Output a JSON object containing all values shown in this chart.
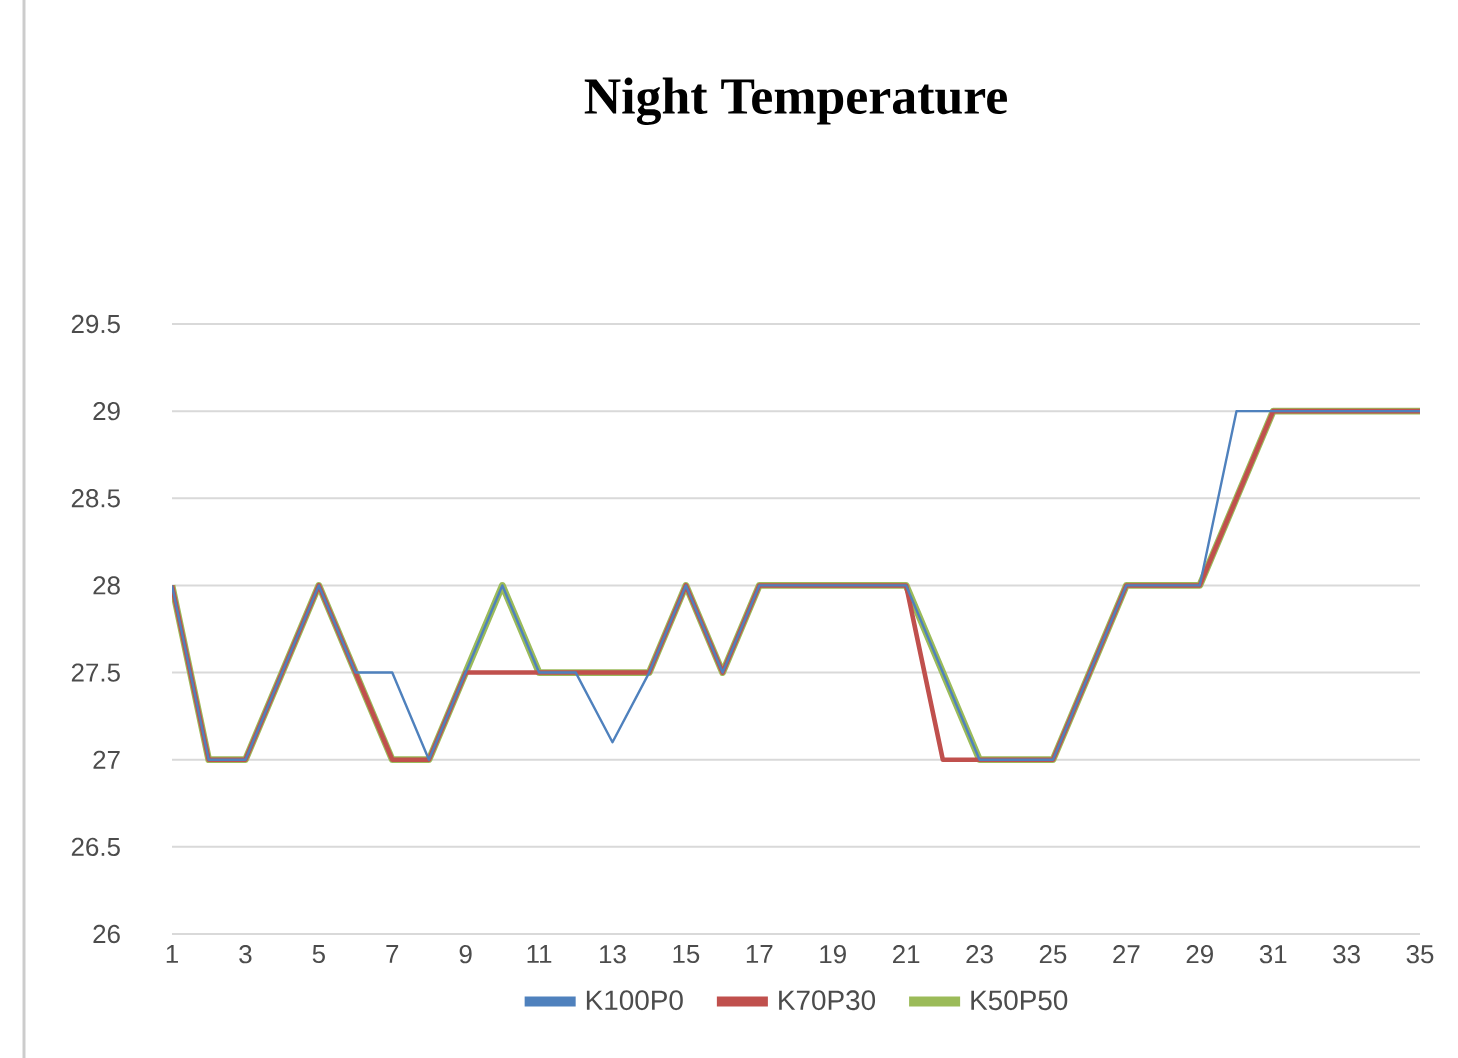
{
  "chart_data": {
    "type": "line",
    "title": "Night Temperature",
    "categories": [
      "1",
      null,
      "3",
      null,
      "5",
      null,
      "7",
      null,
      "9",
      null,
      "11",
      null,
      "13",
      null,
      "15",
      null,
      "17",
      null,
      "19",
      null,
      "21",
      null,
      "23",
      null,
      "25",
      null,
      "27",
      null,
      "29",
      null,
      "31",
      null,
      "33",
      null,
      "35"
    ],
    "series": [
      {
        "name": "K100P0",
        "color": "#4f81bd",
        "values": [
          28,
          27,
          27,
          27.5,
          28,
          27.5,
          27.5,
          27,
          27.5,
          28,
          27.5,
          27.5,
          27.1,
          27.5,
          28,
          27.5,
          28,
          28,
          28,
          28,
          28,
          27.5,
          27,
          27,
          27,
          27.5,
          28,
          28,
          28,
          29,
          29,
          29,
          29,
          29,
          29
        ]
      },
      {
        "name": "K70P30",
        "color": "#c0504d",
        "values": [
          28,
          27,
          27,
          27.5,
          28,
          27.5,
          27,
          27,
          27.5,
          27.5,
          27.5,
          27.5,
          27.5,
          27.5,
          28,
          27.5,
          28,
          28,
          28,
          28,
          28,
          27,
          27,
          27,
          27,
          27.5,
          28,
          28,
          28,
          28.5,
          29,
          29,
          29,
          29,
          29
        ]
      },
      {
        "name": "K50P50",
        "color": "#9bbb59",
        "values": [
          28,
          27,
          27,
          27.5,
          28,
          27.5,
          27,
          27,
          27.5,
          28,
          27.5,
          27.5,
          27.5,
          27.5,
          28,
          27.5,
          28,
          28,
          28,
          28,
          28,
          27.5,
          27,
          27,
          27,
          27.5,
          28,
          28,
          28,
          28.5,
          29,
          29,
          29,
          29,
          29
        ]
      }
    ],
    "ylim": [
      26,
      29.5
    ],
    "yticks": [
      26,
      26.5,
      27,
      27.5,
      28,
      28.5,
      29,
      29.5
    ],
    "grid": "y",
    "legend": "bottom",
    "marker": "none",
    "line_style": "solid"
  }
}
